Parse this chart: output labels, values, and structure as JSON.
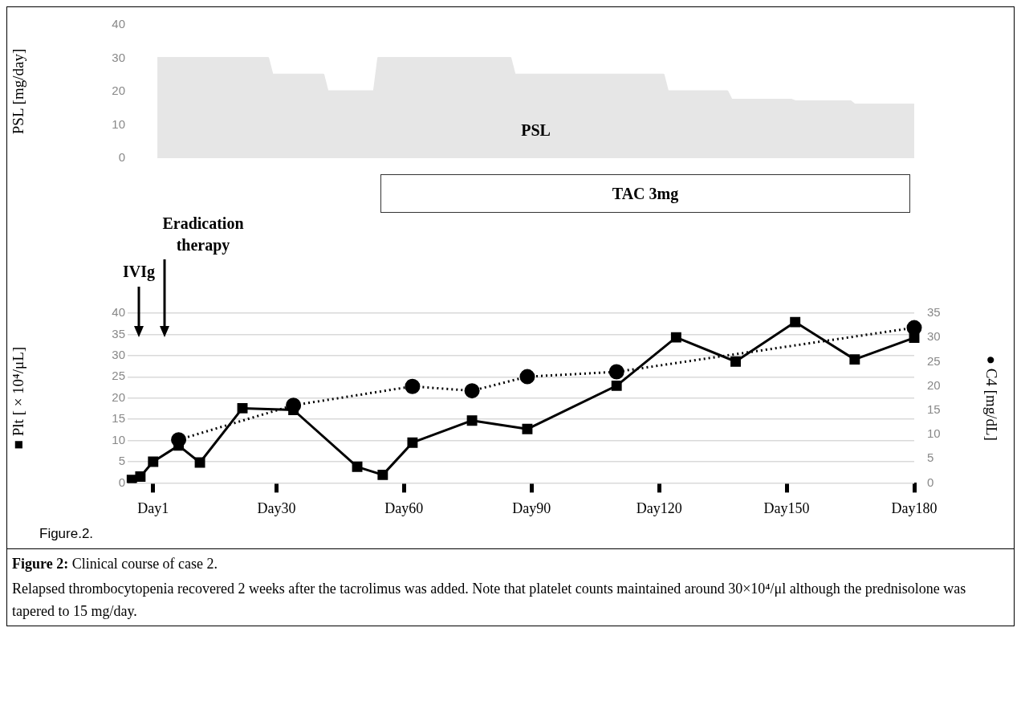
{
  "chart_data": [
    {
      "type": "area",
      "ylabel": "PSL [mg/day]",
      "ylim": [
        0,
        40
      ],
      "yticks": [
        0,
        10,
        20,
        30,
        40
      ],
      "tick_labels": "y",
      "grid": false,
      "marker": "none",
      "categories": [
        null,
        null,
        null,
        null,
        null,
        null,
        null,
        null,
        null,
        null,
        null,
        null,
        null,
        null,
        null,
        null,
        null,
        null,
        null,
        null,
        null,
        null,
        null,
        null,
        null,
        null,
        null,
        null,
        null,
        null,
        null,
        null,
        null,
        null,
        null,
        null,
        null,
        null,
        null,
        null,
        null,
        null,
        null,
        null,
        null,
        null,
        null,
        null,
        null,
        null,
        null,
        null,
        null,
        null,
        null,
        null,
        null,
        null,
        null,
        null,
        null,
        null,
        null,
        null,
        null,
        null,
        null,
        null,
        null,
        null,
        null,
        null,
        null,
        null,
        null,
        null,
        null,
        null,
        null,
        null,
        null,
        null,
        null,
        null,
        null,
        null,
        null,
        null,
        null,
        null,
        null,
        null,
        null,
        null,
        null,
        null,
        null,
        null,
        null,
        null,
        null,
        null,
        null,
        null,
        null,
        null,
        null,
        null,
        null,
        null,
        null,
        null,
        null,
        null,
        null,
        null,
        null,
        null,
        null,
        null,
        null,
        null,
        null,
        null,
        null,
        null,
        null,
        null,
        null,
        null,
        null,
        null,
        null,
        null,
        null,
        null,
        null,
        null,
        null,
        null,
        null,
        null,
        null,
        null,
        null,
        null,
        null,
        null,
        null,
        null,
        null,
        null,
        null,
        null,
        null,
        null,
        null,
        null,
        null,
        null,
        null,
        null,
        null,
        null,
        null,
        null,
        null,
        null,
        null,
        null,
        null,
        null,
        null,
        null,
        null,
        null,
        null,
        null,
        null,
        null,
        null,
        null,
        null,
        null,
        null,
        null
      ],
      "series": [
        {
          "name": "PSL",
          "color": "#e6e6e6",
          "values": [
            null,
            null,
            null,
            null,
            null,
            null,
            null,
            30,
            30,
            30,
            30,
            30,
            30,
            30,
            30,
            30,
            30,
            30,
            30,
            30,
            30,
            30,
            30,
            30,
            30,
            30,
            30,
            30,
            30,
            30,
            30,
            30,
            30,
            30,
            25,
            25,
            25,
            25,
            25,
            25,
            25,
            25,
            25,
            25,
            25,
            25,
            25,
            20,
            20,
            20,
            20,
            20,
            20,
            20,
            20,
            20,
            20,
            20,
            20,
            30,
            30,
            30,
            30,
            30,
            30,
            30,
            30,
            30,
            30,
            30,
            30,
            30,
            30,
            30,
            30,
            30,
            30,
            30,
            30,
            30,
            30,
            30,
            30,
            30,
            30,
            30,
            30,
            30,
            30,
            30,
            30,
            25,
            25,
            25,
            25,
            25,
            25,
            25,
            25,
            25,
            25,
            25,
            25,
            25,
            25,
            25,
            25,
            25,
            25,
            25,
            25,
            25,
            25,
            25,
            25,
            25,
            25,
            25,
            25,
            25,
            25,
            25,
            25,
            25,
            25,
            25,
            25,
            20,
            20,
            20,
            20,
            20,
            20,
            20,
            20,
            20,
            20,
            20,
            20,
            20,
            20,
            20,
            17.5,
            17.5,
            17.5,
            17.5,
            17.5,
            17.5,
            17.5,
            17.5,
            17.5,
            17.5,
            17.5,
            17.5,
            17.5,
            17.5,
            17.5,
            17,
            17,
            17,
            17,
            17,
            17,
            17,
            17,
            17,
            17,
            17,
            17,
            17,
            17,
            16,
            16,
            16,
            16,
            16,
            16,
            16,
            16,
            16,
            16,
            16,
            16,
            16,
            16,
            16
          ]
        }
      ],
      "annotations": [
        "TAC 3mg"
      ]
    },
    {
      "type": "line",
      "ylabel": "■ Plt [ × 10⁴/μL]",
      "y2label": "● C4 [mg/dL]",
      "title": "Figure 2: Clinical course of case 2.",
      "categories": [
        null,
        null,
        null,
        null,
        null,
        null,
        "Day1",
        null,
        null,
        null,
        null,
        null,
        null,
        null,
        null,
        null,
        null,
        null,
        null,
        null,
        null,
        null,
        null,
        null,
        null,
        null,
        null,
        null,
        null,
        null,
        null,
        null,
        null,
        null,
        null,
        "Day30",
        null,
        null,
        null,
        null,
        null,
        null,
        null,
        null,
        null,
        null,
        null,
        null,
        null,
        null,
        null,
        null,
        null,
        null,
        null,
        null,
        null,
        null,
        null,
        null,
        null,
        null,
        null,
        null,
        null,
        "Day60",
        null,
        null,
        null,
        null,
        null,
        null,
        null,
        null,
        null,
        null,
        null,
        null,
        null,
        null,
        null,
        null,
        null,
        null,
        null,
        null,
        null,
        null,
        null,
        null,
        null,
        null,
        null,
        null,
        null,
        "Day90",
        null,
        null,
        null,
        null,
        null,
        null,
        null,
        null,
        null,
        null,
        null,
        null,
        null,
        null,
        null,
        null,
        null,
        null,
        null,
        null,
        null,
        null,
        null,
        null,
        null,
        null,
        null,
        null,
        null,
        "Day120",
        null,
        null,
        null,
        null,
        null,
        null,
        null,
        null,
        null,
        null,
        null,
        null,
        null,
        null,
        null,
        null,
        null,
        null,
        null,
        null,
        null,
        null,
        null,
        null,
        null,
        null,
        null,
        null,
        null,
        "Day150",
        null,
        null,
        null,
        null,
        null,
        null,
        null,
        null,
        null,
        null,
        null,
        null,
        null,
        null,
        null,
        null,
        null,
        null,
        null,
        null,
        null,
        null,
        null,
        null,
        null,
        null,
        null,
        null,
        null,
        "Day180"
      ],
      "ylim": [
        0,
        40
      ],
      "yticks": [
        0,
        5,
        10,
        15,
        20,
        25,
        30,
        35,
        40
      ],
      "y2lim": [
        0,
        35
      ],
      "y2ticks": [
        0,
        5,
        10,
        15,
        20,
        25,
        30,
        35
      ],
      "grid": "y",
      "series": [
        {
          "color": "#000000",
          "marker": "square",
          "line_style": "solid",
          "values": [
            null,
            0.7,
            null,
            1.5,
            null,
            null,
            5,
            null,
            null,
            null,
            null,
            null,
            8.8,
            null,
            null,
            null,
            null,
            4.8,
            null,
            null,
            null,
            null,
            null,
            null,
            null,
            null,
            null,
            17.6,
            null,
            null,
            null,
            null,
            null,
            null,
            null,
            null,
            null,
            null,
            null,
            17.2,
            null,
            null,
            null,
            null,
            null,
            null,
            null,
            null,
            null,
            null,
            null,
            null,
            null,
            null,
            3.8,
            null,
            null,
            null,
            null,
            null,
            1.9,
            null,
            null,
            null,
            null,
            null,
            null,
            9.5,
            null,
            null,
            null,
            null,
            null,
            null,
            null,
            null,
            null,
            null,
            null,
            null,
            null,
            14.7,
            null,
            null,
            null,
            null,
            null,
            null,
            null,
            null,
            null,
            null,
            null,
            null,
            12.7,
            null,
            null,
            null,
            null,
            null,
            null,
            null,
            null,
            null,
            null,
            null,
            null,
            null,
            null,
            null,
            null,
            null,
            null,
            null,
            null,
            22.9,
            null,
            null,
            null,
            null,
            null,
            null,
            null,
            null,
            null,
            null,
            null,
            null,
            null,
            34.3,
            null,
            null,
            null,
            null,
            null,
            null,
            null,
            null,
            null,
            null,
            null,
            null,
            null,
            28.6,
            null,
            null,
            null,
            null,
            null,
            null,
            null,
            null,
            null,
            null,
            null,
            null,
            null,
            37.9,
            null,
            null,
            null,
            null,
            null,
            null,
            null,
            null,
            null,
            null,
            null,
            null,
            null,
            29.1,
            null,
            null,
            null,
            null,
            null,
            null,
            null,
            null,
            null,
            null,
            null,
            null,
            null,
            34.2
          ]
        },
        {
          "color": "#000000",
          "marker": "circle",
          "line_style": "dotted",
          "axis": "y2",
          "values": [
            null,
            null,
            null,
            null,
            null,
            null,
            null,
            null,
            null,
            null,
            null,
            null,
            8.9,
            null,
            null,
            null,
            null,
            null,
            null,
            null,
            null,
            null,
            null,
            null,
            null,
            null,
            null,
            null,
            null,
            null,
            null,
            null,
            null,
            null,
            null,
            null,
            null,
            null,
            null,
            16,
            null,
            null,
            null,
            null,
            null,
            null,
            null,
            null,
            null,
            null,
            null,
            null,
            null,
            null,
            null,
            null,
            null,
            null,
            null,
            null,
            null,
            null,
            null,
            null,
            null,
            null,
            null,
            19.9,
            null,
            null,
            null,
            null,
            null,
            null,
            null,
            null,
            null,
            null,
            null,
            null,
            null,
            19,
            null,
            null,
            null,
            null,
            null,
            null,
            null,
            null,
            null,
            null,
            null,
            null,
            21.9,
            null,
            null,
            null,
            null,
            null,
            null,
            null,
            null,
            null,
            null,
            null,
            null,
            null,
            null,
            null,
            null,
            null,
            null,
            null,
            null,
            22.9,
            null,
            null,
            null,
            null,
            null,
            null,
            null,
            null,
            null,
            null,
            null,
            null,
            null,
            null,
            null,
            null,
            null,
            null,
            null,
            null,
            null,
            null,
            null,
            null,
            null,
            null,
            null,
            null,
            null,
            null,
            null,
            null,
            null,
            null,
            null,
            null,
            null,
            null,
            null,
            null,
            null,
            null,
            null,
            null,
            null,
            null,
            null,
            null,
            null,
            null,
            null,
            null,
            null,
            null,
            null,
            null,
            null,
            null,
            null,
            null,
            null,
            null,
            null,
            null,
            null,
            null,
            null,
            null,
            null,
            32
          ]
        }
      ],
      "annotations": [
        "IVIg",
        "Eradication therapy",
        "Figure.2.",
        "Relapsed thrombocytopenia recovered 2 weeks after the tacrolimus was added. Note that platelet counts maintained around 30×10⁴/μl although the prednisolone was tapered to 15 mg/day."
      ]
    }
  ]
}
